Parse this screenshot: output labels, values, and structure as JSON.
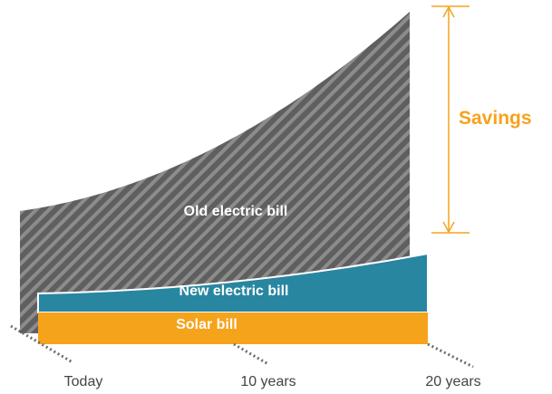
{
  "chart_data": {
    "type": "area",
    "title": "",
    "xlabel": "",
    "ylabel": "",
    "x_categories": [
      "Today",
      "10 years",
      "20 years"
    ],
    "series": [
      {
        "name": "Old electric bill",
        "values": [
          135,
          205,
          355
        ]
      },
      {
        "name": "New electric bill",
        "values": [
          21,
          34,
          65
        ]
      },
      {
        "name": "Solar bill",
        "values": [
          35,
          35,
          35
        ]
      }
    ],
    "annotations": [
      {
        "text": "Savings"
      }
    ],
    "legend": "none",
    "grid": false,
    "colors": {
      "old_bill": "#5f5f5f",
      "old_bill_stripe": "#8c8c8c",
      "new_bill": "#2886a0",
      "solar": "#f6a31c",
      "savings": "#f6a31c",
      "dots": "#6b6b6b"
    }
  }
}
